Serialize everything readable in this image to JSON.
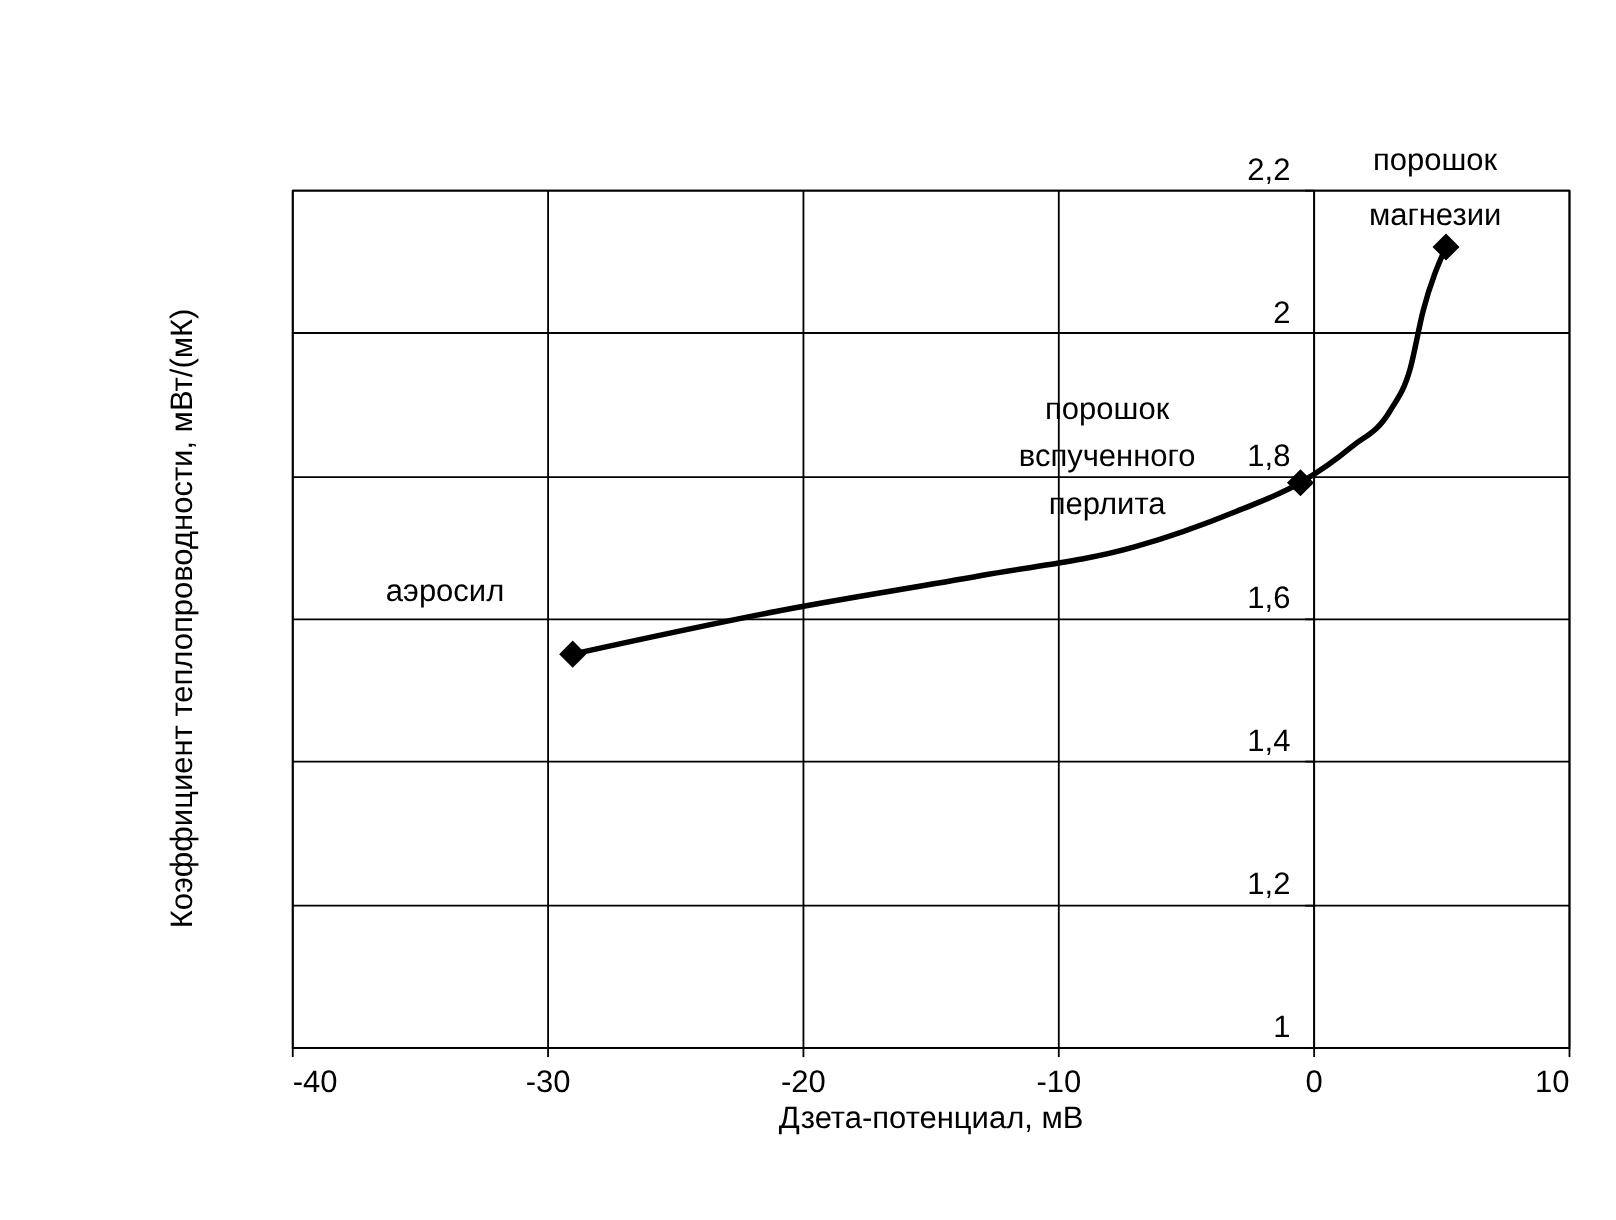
{
  "chart_data": {
    "type": "line",
    "xlabel": "Дзета-потенциал, мВ",
    "ylabel": "Коэффициент теплопроводности, мВт/(мК)",
    "xlim": [
      -40,
      10
    ],
    "xticks": [
      -40,
      -30,
      -20,
      -10,
      0,
      10
    ],
    "ylim": [
      1,
      2.2
    ],
    "yticks": [
      {
        "value": 1,
        "label": "1"
      },
      {
        "value": 1.2,
        "label": "1,2"
      },
      {
        "value": 1.4,
        "label": "1,4"
      },
      {
        "value": 1.6,
        "label": "1,6"
      },
      {
        "value": 1.8,
        "label": "1,8"
      },
      {
        "value": 2,
        "label": "2"
      },
      {
        "value": 2.2,
        "label": "2,2"
      }
    ],
    "grid": true,
    "series": [
      {
        "color": "#000000",
        "marker": "none",
        "x": [
          -29,
          -21,
          -13,
          -7,
          -3,
          -0.5,
          1.5,
          3,
          3.8,
          4.3,
          5.2
        ],
        "values": [
          1.55,
          1.61,
          1.66,
          1.7,
          1.75,
          1.79,
          1.84,
          1.89,
          1.95,
          2.03,
          2.12
        ]
      },
      {
        "type": "scatter",
        "color": "#000000",
        "marker": "diamond",
        "x": [
          -29,
          -0.5,
          5.2
        ],
        "values": [
          1.55,
          1.79,
          2.12
        ]
      }
    ],
    "annotations": [
      "аэросил",
      "порошок\nвспученного\nперлита",
      "порошок\nмагнезии"
    ]
  }
}
